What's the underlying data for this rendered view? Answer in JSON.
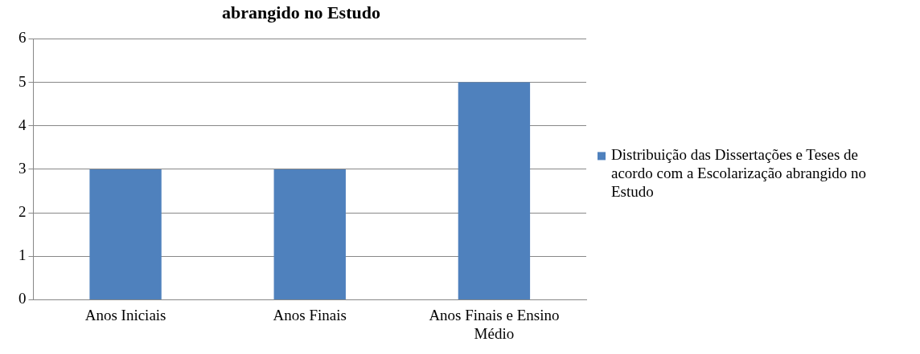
{
  "chart_data": {
    "type": "bar",
    "title": "abrangido no Estudo",
    "categories": [
      "Anos Iniciais",
      "Anos Finais",
      "Anos Finais e Ensino Médio"
    ],
    "series": [
      {
        "name": "Distribuição das Dissertações e Teses de acordo com a Escolarização abrangido no Estudo",
        "color": "#4f81bd",
        "values": [
          3,
          3,
          5
        ]
      }
    ],
    "ylim": [
      0,
      6
    ],
    "yticks": [
      0,
      1,
      2,
      3,
      4,
      5,
      6
    ],
    "grid": "y",
    "legend": "right"
  }
}
